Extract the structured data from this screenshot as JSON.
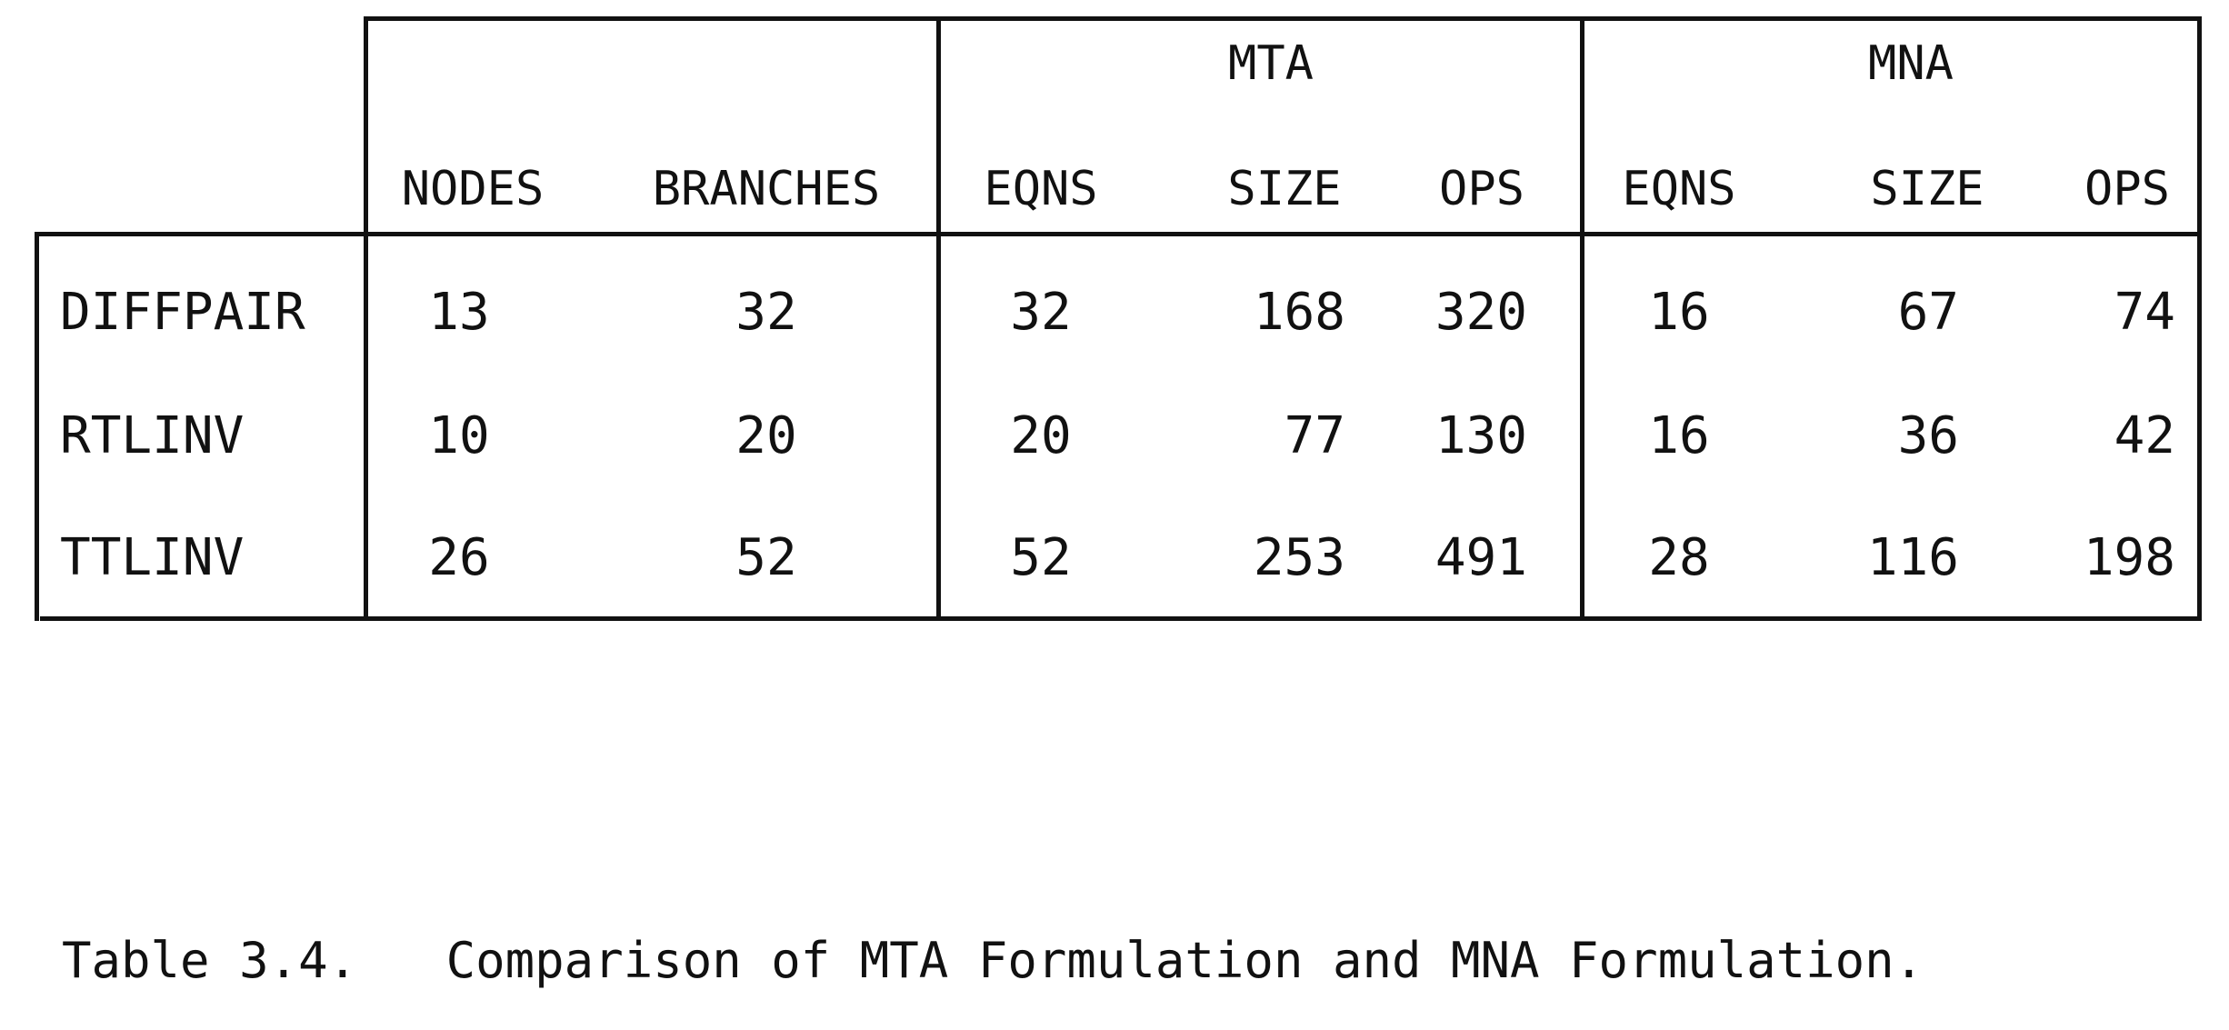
{
  "table": {
    "group_headers": {
      "mta": "MTA",
      "mna": "MNA"
    },
    "column_headers": {
      "nodes": "NODES",
      "branches": "BRANCHES",
      "mta_eqns": "EQNS",
      "mta_size": "SIZE",
      "mta_ops": "OPS",
      "mna_eqns": "EQNS",
      "mna_size": "SIZE",
      "mna_ops": "OPS"
    },
    "rows": [
      {
        "name": "DIFFPAIR",
        "nodes": "13",
        "branches": "32",
        "mta_eqns": "32",
        "mta_size": "168",
        "mta_ops": "320",
        "mna_eqns": "16",
        "mna_size": "67",
        "mna_ops": "74"
      },
      {
        "name": "RTLINV",
        "nodes": "10",
        "branches": "20",
        "mta_eqns": "20",
        "mta_size": "77",
        "mta_ops": "130",
        "mna_eqns": "16",
        "mna_size": "36",
        "mna_ops": "42"
      },
      {
        "name": "TTLINV",
        "nodes": "26",
        "branches": "52",
        "mta_eqns": "52",
        "mta_size": "253",
        "mta_ops": "491",
        "mna_eqns": "28",
        "mna_size": "116",
        "mna_ops": "198"
      }
    ]
  },
  "caption": "Table 3.4.   Comparison of MTA Formulation and MNA Formulation."
}
